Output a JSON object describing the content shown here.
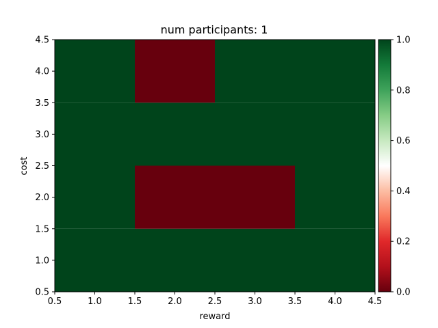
{
  "chart_data": {
    "type": "heatmap",
    "title": "num participants: 1",
    "xlabel": "reward",
    "ylabel": "cost",
    "x_categories": [
      1,
      2,
      3,
      4
    ],
    "y_categories": [
      1,
      2,
      3,
      4
    ],
    "xlim": [
      0.5,
      4.5
    ],
    "ylim": [
      0.5,
      4.5
    ],
    "x_ticks": [
      "0.5",
      "1.0",
      "1.5",
      "2.0",
      "2.5",
      "3.0",
      "3.5",
      "4.0",
      "4.5"
    ],
    "y_ticks": [
      "0.5",
      "1.0",
      "1.5",
      "2.0",
      "2.5",
      "3.0",
      "3.5",
      "4.0",
      "4.5"
    ],
    "values": [
      [
        1,
        1,
        1,
        1
      ],
      [
        1,
        0,
        0,
        1
      ],
      [
        1,
        1,
        1,
        1
      ],
      [
        1,
        0,
        1,
        1
      ]
    ],
    "colormap": "RdYlGn-like (red to white to green)",
    "colorbar": {
      "min": 0.0,
      "max": 1.0,
      "ticks": [
        "0.0",
        "0.2",
        "0.4",
        "0.6",
        "0.8",
        "1.0"
      ],
      "colors": {
        "low": "#67000d",
        "mid": "#ffffff",
        "high": "#00441b"
      }
    },
    "grid": false
  }
}
